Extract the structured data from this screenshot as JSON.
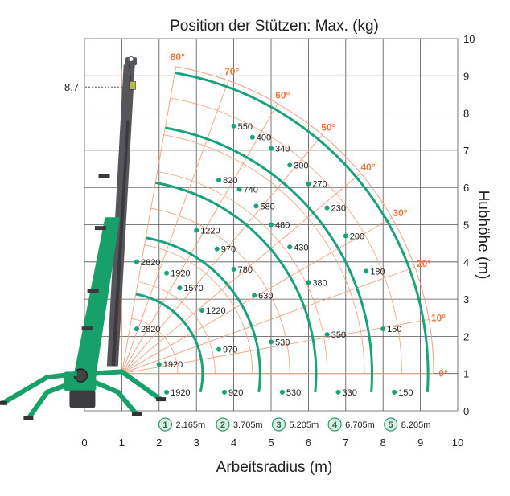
{
  "chart_data": {
    "type": "line",
    "title": "Position der Stützen: Max. (kg)",
    "xlabel": "Arbeitsradius (m)",
    "ylabel": "Hubhöhe (m)",
    "xlim": [
      0,
      10
    ],
    "ylim": [
      0,
      10
    ],
    "x_ticks": [
      "0",
      "1",
      "2",
      "3",
      "4",
      "5",
      "6",
      "7",
      "8",
      "9",
      "10"
    ],
    "y_ticks": [
      "0",
      "1",
      "2",
      "3",
      "4",
      "5",
      "6",
      "7",
      "8",
      "9",
      "10"
    ],
    "max_height_label": "8.7",
    "max_height_value": 8.7,
    "pivot": [
      1.0,
      1.0
    ],
    "angles": [
      {
        "label": "0°",
        "deg": 0
      },
      {
        "label": "10°",
        "deg": 10
      },
      {
        "label": "20°",
        "deg": 20
      },
      {
        "label": "30°",
        "deg": 30
      },
      {
        "label": "40°",
        "deg": 40
      },
      {
        "label": "50°",
        "deg": 50
      },
      {
        "label": "60°",
        "deg": 60
      },
      {
        "label": "70°",
        "deg": 70
      },
      {
        "label": "80°",
        "deg": 80
      }
    ],
    "series": [
      {
        "name": "1",
        "extension_label": "2.165m",
        "radius": 2.165,
        "points": [
          {
            "x": 2.2,
            "y": 0.5,
            "label": "1920"
          },
          {
            "x": 2.0,
            "y": 1.25,
            "label": "1920"
          },
          {
            "x": 1.4,
            "y": 2.2,
            "label": "2820"
          },
          {
            "x": 1.4,
            "y": 4.0,
            "label": "2820"
          }
        ]
      },
      {
        "name": "2",
        "extension_label": "3.705m",
        "radius": 3.705,
        "points": [
          {
            "x": 3.75,
            "y": 0.5,
            "label": "920"
          },
          {
            "x": 3.6,
            "y": 1.65,
            "label": "970"
          },
          {
            "x": 3.15,
            "y": 2.7,
            "label": "1220"
          },
          {
            "x": 2.55,
            "y": 3.3,
            "label": "1570"
          },
          {
            "x": 2.2,
            "y": 3.7,
            "label": "1920"
          }
        ]
      },
      {
        "name": "3",
        "extension_label": "5.205m",
        "radius": 5.205,
        "points": [
          {
            "x": 5.3,
            "y": 0.5,
            "label": "530"
          },
          {
            "x": 5.0,
            "y": 1.85,
            "label": "530"
          },
          {
            "x": 4.55,
            "y": 3.1,
            "label": "630"
          },
          {
            "x": 4.0,
            "y": 3.8,
            "label": "780"
          },
          {
            "x": 3.55,
            "y": 4.35,
            "label": "970"
          },
          {
            "x": 3.0,
            "y": 4.85,
            "label": "1220"
          }
        ]
      },
      {
        "name": "4",
        "extension_label": "6.705m",
        "radius": 6.705,
        "points": [
          {
            "x": 6.8,
            "y": 0.5,
            "label": "330"
          },
          {
            "x": 6.5,
            "y": 2.05,
            "label": "350"
          },
          {
            "x": 6.0,
            "y": 3.45,
            "label": "380"
          },
          {
            "x": 5.5,
            "y": 4.4,
            "label": "430"
          },
          {
            "x": 5.0,
            "y": 5.0,
            "label": "480"
          },
          {
            "x": 4.6,
            "y": 5.5,
            "label": "580"
          },
          {
            "x": 4.15,
            "y": 5.95,
            "label": "740"
          },
          {
            "x": 3.6,
            "y": 6.2,
            "label": "820"
          }
        ]
      },
      {
        "name": "5",
        "extension_label": "8.205m",
        "radius": 8.205,
        "points": [
          {
            "x": 8.3,
            "y": 0.5,
            "label": "150"
          },
          {
            "x": 8.0,
            "y": 2.2,
            "label": "150"
          },
          {
            "x": 7.55,
            "y": 3.75,
            "label": "180"
          },
          {
            "x": 7.0,
            "y": 4.7,
            "label": "200"
          },
          {
            "x": 6.5,
            "y": 5.45,
            "label": "230"
          },
          {
            "x": 6.0,
            "y": 6.1,
            "label": "270"
          },
          {
            "x": 5.5,
            "y": 6.6,
            "label": "300"
          },
          {
            "x": 5.0,
            "y": 7.05,
            "label": "340"
          },
          {
            "x": 4.5,
            "y": 7.35,
            "label": "400"
          },
          {
            "x": 4.0,
            "y": 7.65,
            "label": "550"
          }
        ]
      }
    ],
    "grid": true,
    "colors": {
      "curve": "#1aa37a",
      "angle_lines": "#f0a080",
      "angle_labels": "#f0743c",
      "badge_fill": "#d9efe2",
      "badge_stroke": "#2a9a6a",
      "crane": "#18a06a",
      "boom": "#55555a"
    }
  }
}
